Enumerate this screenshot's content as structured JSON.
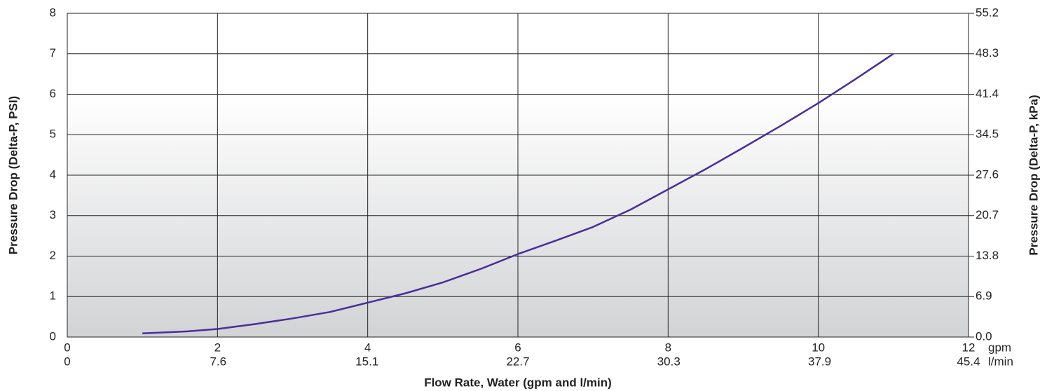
{
  "chart_data": {
    "type": "line",
    "x_label": "Flow Rate, Water (gpm and l/min)",
    "y_label": "Pressure Drop (Delta-P, PSI)",
    "y2_label": "Pressure Drop (Delta-P, kPa)",
    "x_units": [
      "gpm",
      "l/min"
    ],
    "x": [
      1,
      1.6,
      2,
      2.5,
      3,
      3.5,
      4,
      4.5,
      5,
      5.5,
      6,
      6.5,
      7,
      7.5,
      8,
      8.5,
      9,
      9.5,
      10,
      10.5,
      11
    ],
    "series": [
      {
        "color": "#4b2d9a",
        "values": [
          0.09,
          0.14,
          0.2,
          0.32,
          0.46,
          0.62,
          0.85,
          1.08,
          1.35,
          1.68,
          2.05,
          2.38,
          2.72,
          3.15,
          3.65,
          4.15,
          4.68,
          5.22,
          5.78,
          6.38,
          7.0
        ]
      }
    ],
    "xlim": [
      0,
      12
    ],
    "xticks": [
      0,
      2,
      4,
      6,
      8,
      10,
      12
    ],
    "x2lim": [
      0,
      45.4
    ],
    "x2ticks": [
      0,
      7.6,
      15.1,
      22.7,
      30.3,
      37.9,
      45.4
    ],
    "ylim": [
      0,
      8
    ],
    "yticks": [
      0,
      1,
      2,
      3,
      4,
      5,
      6,
      7,
      8
    ],
    "y2lim": [
      0,
      55.2
    ],
    "y2ticks": [
      {
        "value": 0,
        "label": "0.0"
      },
      6.9,
      13.8,
      20.7,
      27.6,
      34.5,
      41.4,
      48.3,
      55.2
    ],
    "grid": true
  }
}
